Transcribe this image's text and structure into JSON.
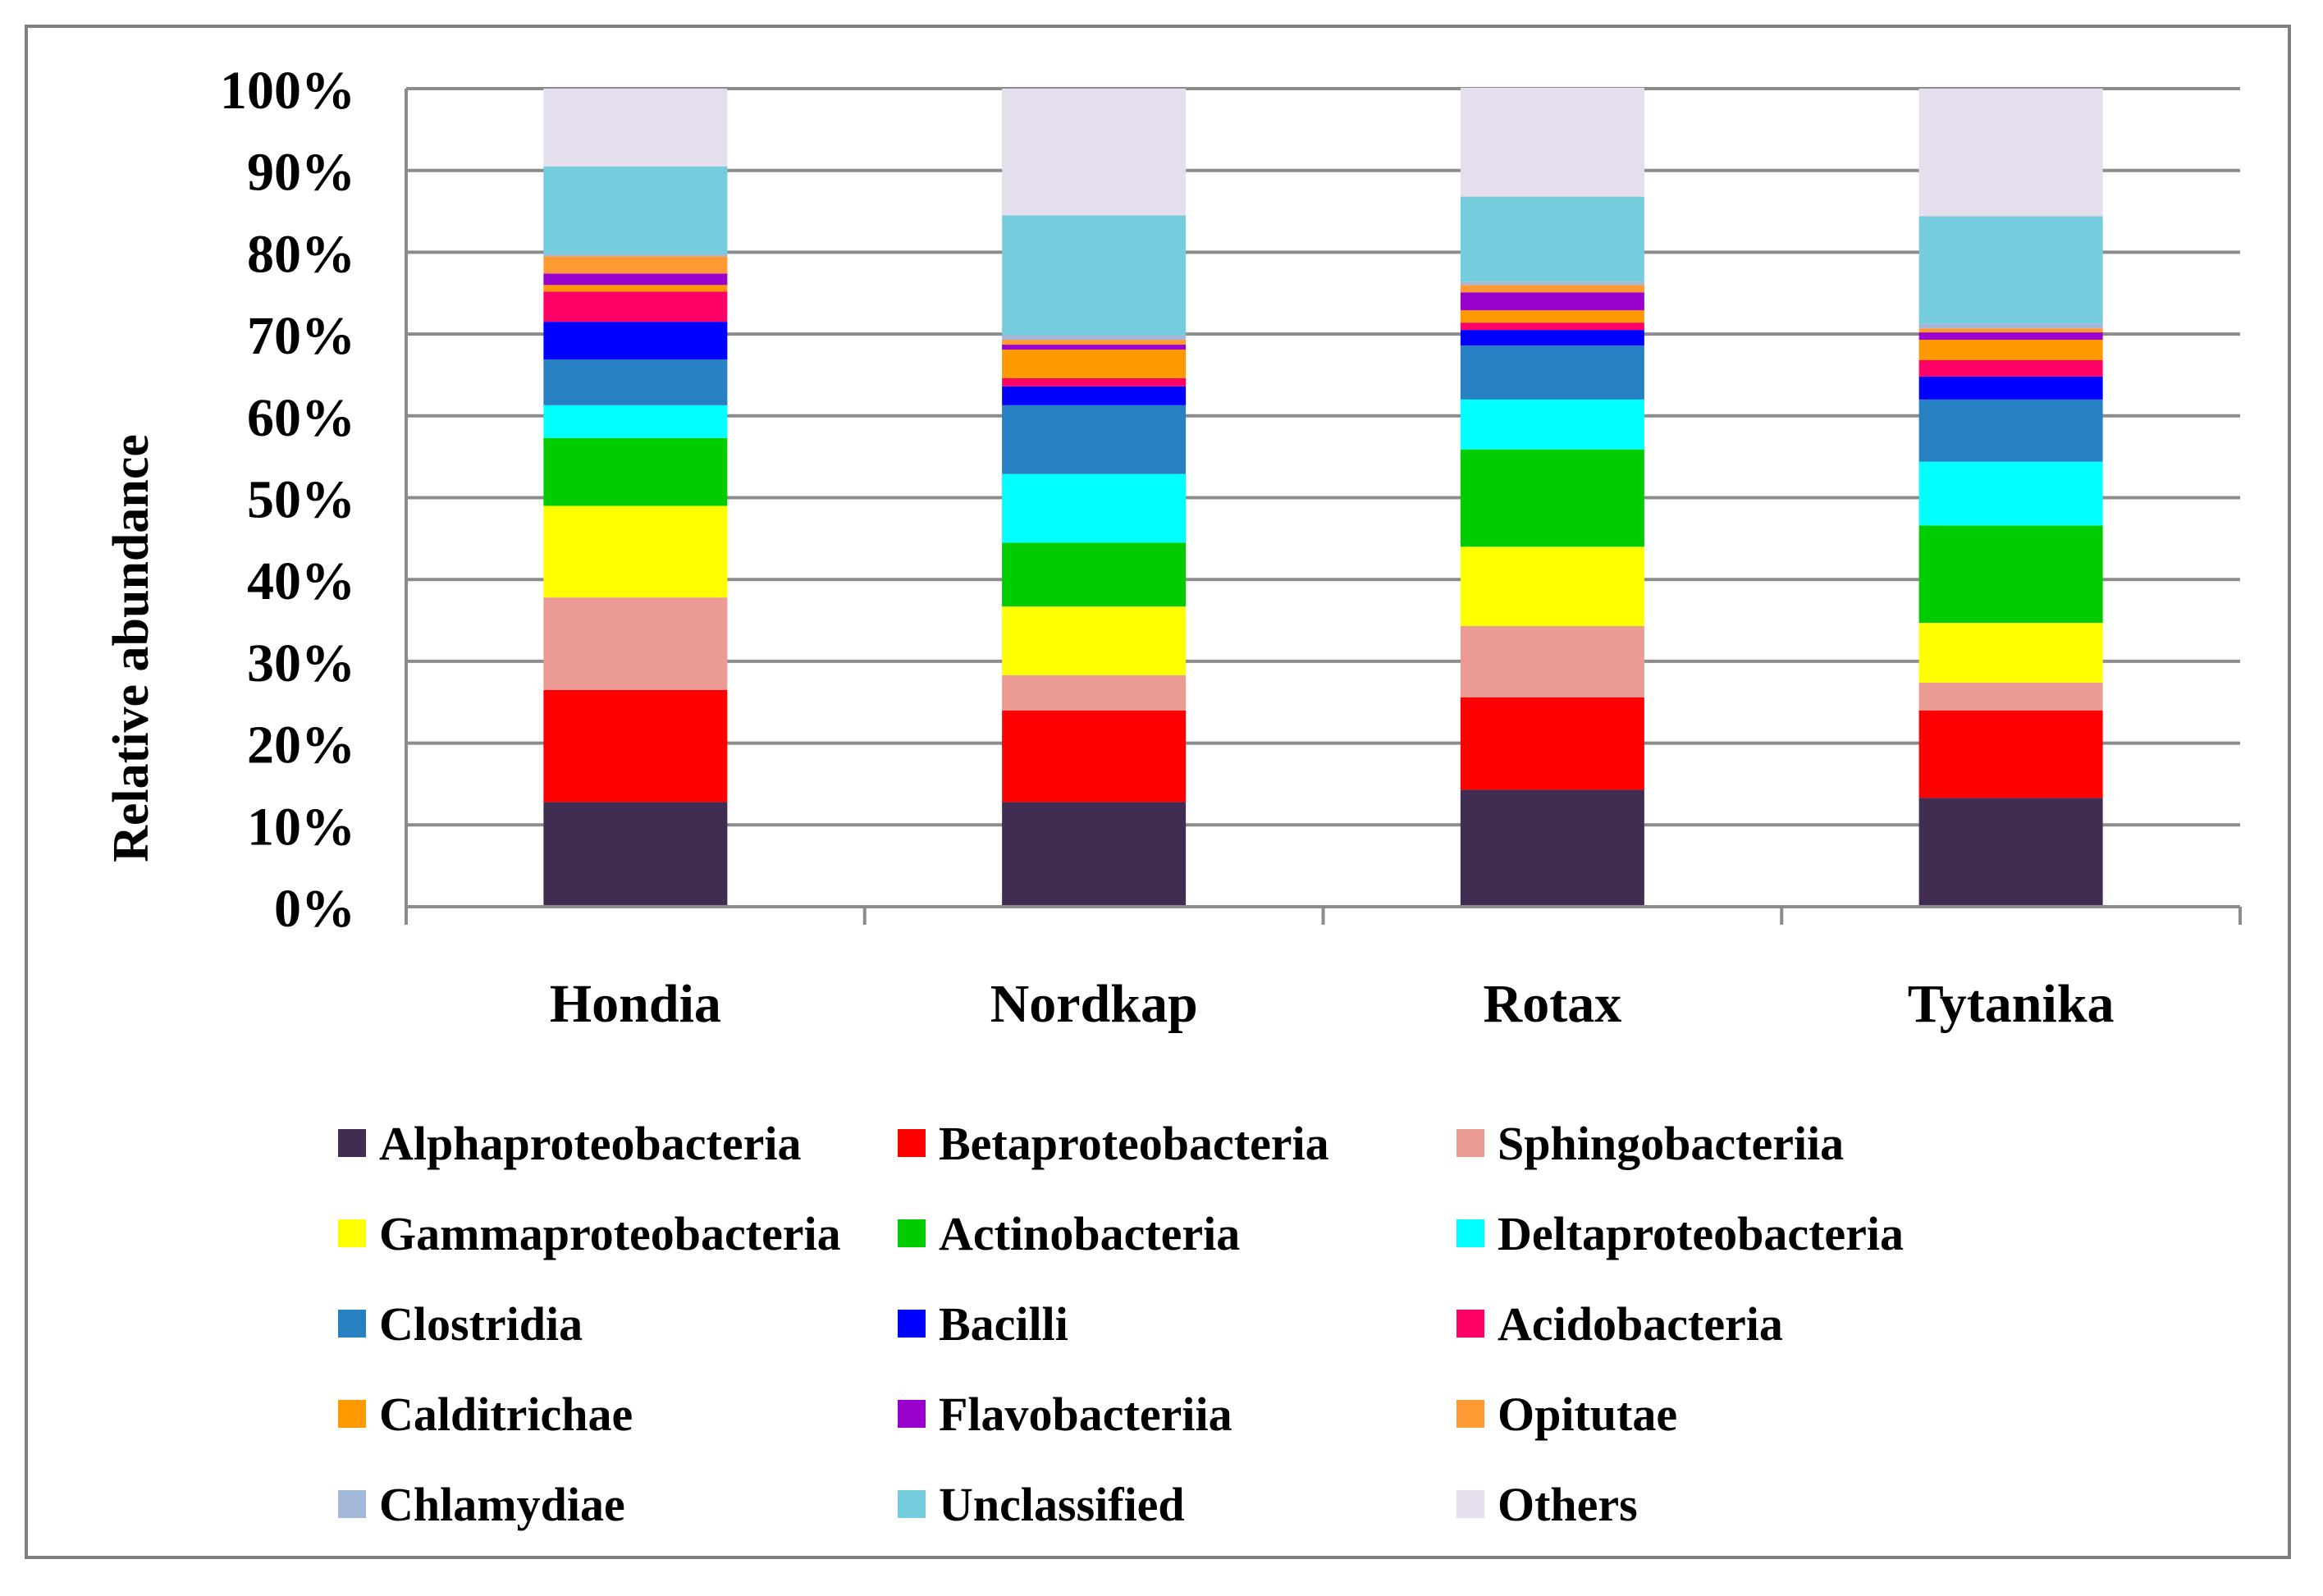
{
  "chart_data": {
    "type": "stacked-bar-100",
    "ylabel": "Relative abundance",
    "xlabel": "",
    "ylim": [
      0,
      100
    ],
    "yticks": [
      "0%",
      "10%",
      "20%",
      "30%",
      "40%",
      "50%",
      "60%",
      "70%",
      "80%",
      "90%",
      "100%"
    ],
    "categories": [
      "Hondia",
      "Nordkap",
      "Rotax",
      "Tytanika"
    ],
    "grid": true,
    "legend_position": "bottom",
    "series": [
      {
        "name": "Alphaproteobacteria",
        "color": "#412D52",
        "values": [
          12.8,
          12.8,
          14.3,
          13.3
        ]
      },
      {
        "name": "Betaproteobacteria",
        "color": "#FF0000",
        "values": [
          13.7,
          11.2,
          11.3,
          10.7
        ]
      },
      {
        "name": "Sphingobacteriia",
        "color": "#EC9A94",
        "values": [
          11.3,
          4.3,
          8.7,
          3.4
        ]
      },
      {
        "name": "Gammaproteobacteria",
        "color": "#FFFF00",
        "values": [
          11.2,
          8.4,
          9.7,
          7.3
        ]
      },
      {
        "name": "Actinobacteria",
        "color": "#00CC00",
        "values": [
          8.3,
          7.8,
          11.9,
          11.9
        ]
      },
      {
        "name": "Deltaproteobacteria",
        "color": "#00FFFF",
        "values": [
          4.0,
          8.4,
          6.1,
          7.8
        ]
      },
      {
        "name": "Clostridia",
        "color": "#2680C2",
        "values": [
          5.6,
          8.4,
          6.6,
          7.6
        ]
      },
      {
        "name": "Bacilli",
        "color": "#0000FF",
        "values": [
          4.6,
          2.3,
          1.9,
          2.8
        ]
      },
      {
        "name": "Acidobacteria",
        "color": "#FF0066",
        "values": [
          3.7,
          1.0,
          0.9,
          2.0
        ]
      },
      {
        "name": "Calditrichae",
        "color": "#FF9900",
        "values": [
          0.8,
          3.5,
          1.5,
          2.5
        ]
      },
      {
        "name": "Flavobacteriia",
        "color": "#9900CC",
        "values": [
          1.4,
          0.6,
          2.2,
          0.9
        ]
      },
      {
        "name": "Opitutae",
        "color": "#FF9933",
        "values": [
          2.1,
          0.6,
          0.9,
          0.5
        ]
      },
      {
        "name": "Chlamydiae",
        "color": "#A3B8D9",
        "values": [
          0.3,
          0.6,
          0.4,
          0.6
        ]
      },
      {
        "name": "Unclassified",
        "color": "#75CCDD",
        "values": [
          10.7,
          14.6,
          10.4,
          13.1
        ]
      },
      {
        "name": "Others",
        "color": "#E5DEED",
        "values": [
          9.5,
          15.5,
          13.3,
          15.6
        ]
      }
    ]
  }
}
